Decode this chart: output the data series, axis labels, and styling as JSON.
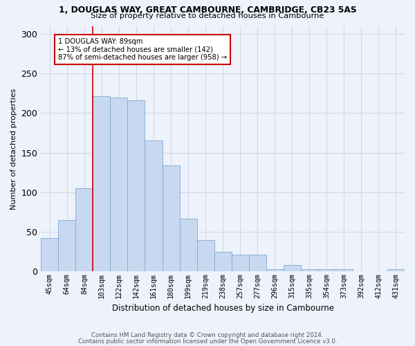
{
  "title1": "1, DOUGLAS WAY, GREAT CAMBOURNE, CAMBRIDGE, CB23 5AS",
  "title2": "Size of property relative to detached houses in Cambourne",
  "xlabel": "Distribution of detached houses by size in Cambourne",
  "ylabel": "Number of detached properties",
  "bar_labels": [
    "45sqm",
    "64sqm",
    "84sqm",
    "103sqm",
    "122sqm",
    "142sqm",
    "161sqm",
    "180sqm",
    "199sqm",
    "219sqm",
    "238sqm",
    "257sqm",
    "277sqm",
    "296sqm",
    "315sqm",
    "335sqm",
    "354sqm",
    "373sqm",
    "392sqm",
    "412sqm",
    "431sqm"
  ],
  "bar_values": [
    42,
    65,
    105,
    221,
    220,
    216,
    165,
    134,
    67,
    40,
    25,
    21,
    21,
    3,
    8,
    3,
    3,
    3,
    0,
    0,
    3
  ],
  "bar_color": "#c8d8f0",
  "bar_edge_color": "#7aaad0",
  "vline_x": 2.5,
  "annotation_text": "1 DOUGLAS WAY: 89sqm\n← 13% of detached houses are smaller (142)\n87% of semi-detached houses are larger (958) →",
  "annotation_box_color": "#ffffff",
  "annotation_box_edge": "#cc0000",
  "vline_color": "#cc0000",
  "ylim": [
    0,
    310
  ],
  "yticks": [
    0,
    50,
    100,
    150,
    200,
    250,
    300
  ],
  "footnote1": "Contains HM Land Registry data © Crown copyright and database right 2024.",
  "footnote2": "Contains public sector information licensed under the Open Government Licence v3.0.",
  "bg_color": "#eef2fb",
  "grid_color": "#d0d8e8"
}
